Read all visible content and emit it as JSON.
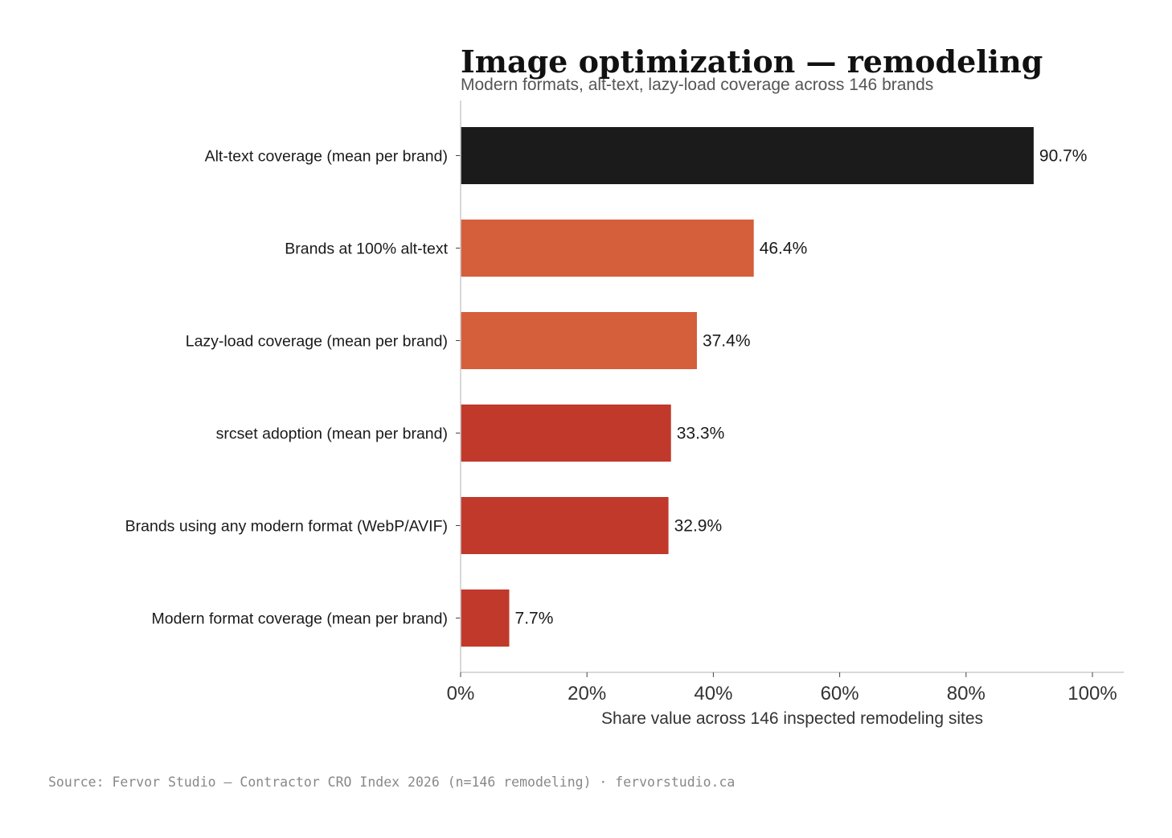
{
  "chart_data": {
    "type": "bar",
    "orientation": "horizontal",
    "title": "Image optimization — remodeling",
    "subtitle": "Modern formats, alt-text, lazy-load coverage across 146 brands",
    "xlabel": "Share value across 146 inspected remodeling sites",
    "ylabel": "",
    "xlim": [
      0,
      100
    ],
    "xticks": [
      0,
      20,
      40,
      60,
      80,
      100
    ],
    "xtick_labels": [
      "0%",
      "20%",
      "40%",
      "60%",
      "80%",
      "100%"
    ],
    "grid": false,
    "categories": [
      "Alt-text coverage (mean per brand)",
      "Brands at 100% alt-text",
      "Lazy-load coverage (mean per brand)",
      "srcset adoption (mean per brand)",
      "Brands using any modern format (WebP/AVIF)",
      "Modern format coverage (mean per brand)"
    ],
    "values": [
      90.7,
      46.4,
      37.4,
      33.3,
      32.9,
      7.7
    ],
    "value_labels": [
      "90.7%",
      "46.4%",
      "37.4%",
      "33.3%",
      "32.9%",
      "7.7%"
    ],
    "colors": [
      "#1b1b1b",
      "#d55e3b",
      "#d55e3b",
      "#c0392b",
      "#c0392b",
      "#c0392b"
    ]
  },
  "source": "Source: Fervor Studio — Contractor CRO Index 2026 (n=146 remodeling) · fervorstudio.ca"
}
